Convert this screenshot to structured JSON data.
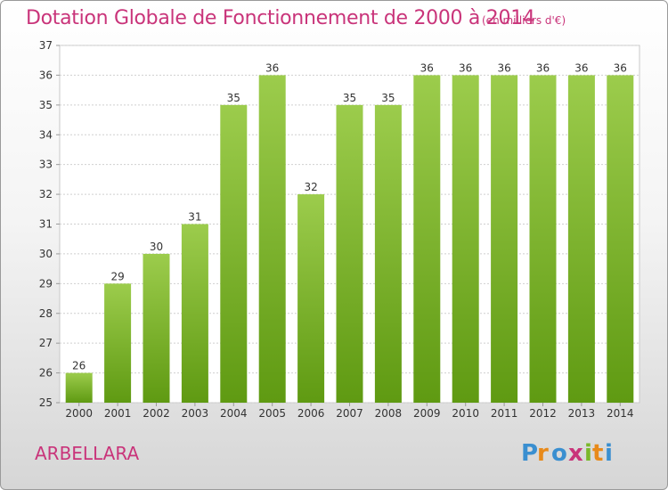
{
  "header": {
    "title": "Dotation Globale de Fonctionnement de 2000 à 2014",
    "unit": "(en milliers d'€)"
  },
  "footer": {
    "commune": "ARBELLARA",
    "logo_text": "Proxiti"
  },
  "colors": {
    "accent": "#c9347a",
    "bar_top": "#9ccc4c",
    "bar_bottom": "#5f9a12",
    "grid": "#cfcfcf"
  },
  "chart_data": {
    "type": "bar",
    "title": "Dotation Globale de Fonctionnement de 2000 à 2014",
    "xlabel": "",
    "ylabel": "",
    "categories": [
      "2000",
      "2001",
      "2002",
      "2003",
      "2004",
      "2005",
      "2006",
      "2007",
      "2008",
      "2009",
      "2010",
      "2011",
      "2012",
      "2013",
      "2014"
    ],
    "values": [
      26,
      29,
      30,
      31,
      35,
      36,
      32,
      35,
      35,
      36,
      36,
      36,
      36,
      36,
      36
    ],
    "ylim": [
      25,
      37
    ],
    "yticks": [
      25,
      26,
      27,
      28,
      29,
      30,
      31,
      32,
      33,
      34,
      35,
      36,
      37
    ],
    "grid": true,
    "legend": "none"
  }
}
